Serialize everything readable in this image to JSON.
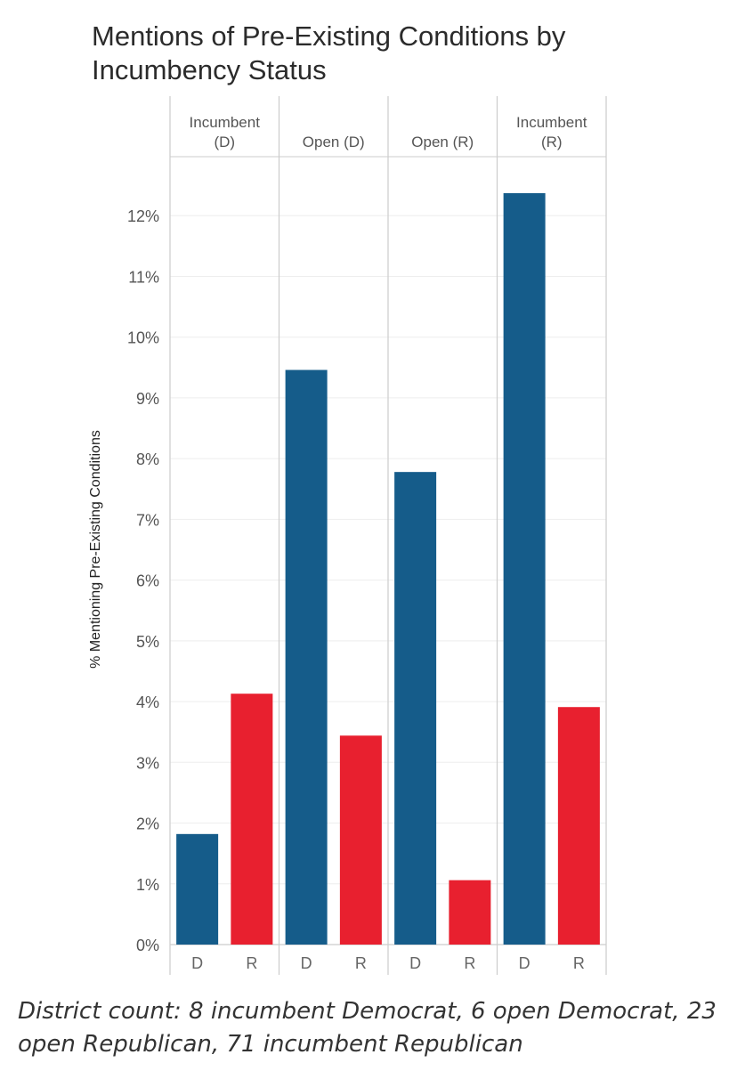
{
  "title": "Mentions of Pre-Existing Conditions by Incumbency Status",
  "caption": "District count: 8 incumbent Democrat, 6 open Democrat, 23 open Republican, 71 incumbent Republican",
  "colors": {
    "D": "#155c8a",
    "R": "#e8202f",
    "grid": "#eeeeee",
    "axis": "#cccccc"
  },
  "chart_data": {
    "type": "bar",
    "title": "Mentions of Pre-Existing Conditions by Incumbency Status",
    "ylabel": "% Mentioning Pre-Existing Conditions",
    "xlabel": "",
    "ylim": [
      0,
      13
    ],
    "yticks": [
      "0%",
      "1%",
      "2%",
      "3%",
      "4%",
      "5%",
      "6%",
      "7%",
      "8%",
      "9%",
      "10%",
      "11%",
      "12%"
    ],
    "grid": true,
    "categories": [
      "D",
      "R"
    ],
    "panels": [
      {
        "label_lines": [
          "Incumbent",
          "(D)"
        ],
        "values": [
          1.82,
          4.13
        ]
      },
      {
        "label_lines": [
          "Open (D)"
        ],
        "values": [
          9.46,
          3.44
        ]
      },
      {
        "label_lines": [
          "Open (R)"
        ],
        "values": [
          7.78,
          1.06
        ]
      },
      {
        "label_lines": [
          "Incumbent",
          "(R)"
        ],
        "values": [
          12.37,
          3.91
        ]
      }
    ]
  }
}
